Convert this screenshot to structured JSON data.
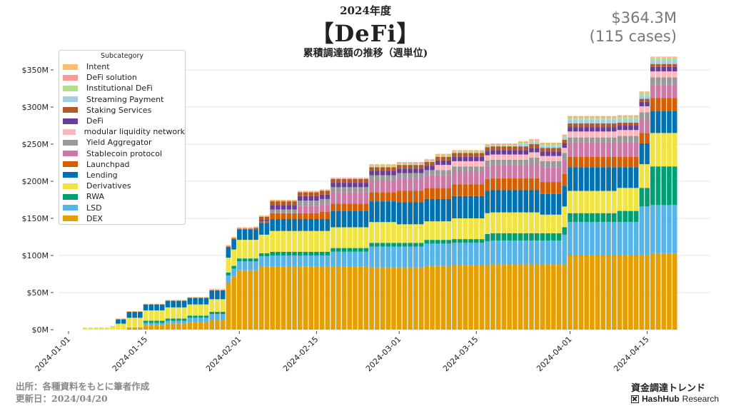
{
  "header": {
    "year_label": "2024年度",
    "title": "【DeFi】",
    "subtitle": "累積調達額の推移（週単位)",
    "total_amount": "$364.3M",
    "total_cases": "(115 cases)"
  },
  "footer": {
    "source": "出所：各種資料をもとに筆者作成",
    "updated": "更新日：2024/04/20",
    "right_title": "資金調達トレンド",
    "brand_bold": "HashHub",
    "brand_light": "Research"
  },
  "chart_data": {
    "type": "bar",
    "stacked": true,
    "title": "累積調達額の推移（週単位)",
    "xlabel": "",
    "ylabel": "",
    "ylim": [
      0,
      365
    ],
    "y_unit": "$M",
    "y_ticks": [
      "$0M",
      "$50M",
      "$100M",
      "$150M",
      "$200M",
      "$250M",
      "$300M",
      "$350M"
    ],
    "y_tick_values": [
      0,
      50,
      100,
      150,
      200,
      250,
      300,
      350
    ],
    "x_start": "2024-01-01",
    "x_end": "2024-04-20",
    "x_ticks": [
      "2024-01-01",
      "2024-01-15",
      "2024-02-01",
      "2024-02-15",
      "2024-03-01",
      "2024-03-15",
      "2024-04-01",
      "2024-04-15"
    ],
    "x_tick_days": [
      0,
      14,
      31,
      45,
      60,
      74,
      91,
      105
    ],
    "grid": "horizontal",
    "legend": {
      "title": "Subcategory",
      "placement": "top-left"
    },
    "first_bar_day": 3,
    "num_days": 111,
    "series_steps": [
      {
        "name": "DEX",
        "color": "#E69F00",
        "steps": [
          [
            3,
            0
          ],
          [
            9,
            0
          ],
          [
            11,
            3
          ],
          [
            14,
            6
          ],
          [
            18,
            8
          ],
          [
            22,
            10
          ],
          [
            26,
            13
          ],
          [
            29,
            63
          ],
          [
            30,
            72
          ],
          [
            31,
            80
          ],
          [
            35,
            85
          ],
          [
            36,
            85
          ],
          [
            48,
            85
          ],
          [
            55,
            84
          ],
          [
            65,
            86
          ],
          [
            70,
            87
          ],
          [
            77,
            88
          ],
          [
            90,
            88
          ],
          [
            91,
            100
          ],
          [
            100,
            100
          ],
          [
            104,
            101
          ],
          [
            106,
            103
          ],
          [
            109,
            103
          ]
        ]
      },
      {
        "name": "LSD",
        "color": "#56B4E9",
        "steps": [
          [
            3,
            0
          ],
          [
            11,
            0
          ],
          [
            14,
            3
          ],
          [
            18,
            4
          ],
          [
            22,
            6
          ],
          [
            26,
            8
          ],
          [
            29,
            10
          ],
          [
            30,
            10
          ],
          [
            31,
            12
          ],
          [
            35,
            14
          ],
          [
            37,
            15
          ],
          [
            48,
            20
          ],
          [
            55,
            28
          ],
          [
            60,
            28
          ],
          [
            65,
            30
          ],
          [
            68,
            30
          ],
          [
            76,
            32
          ],
          [
            90,
            40
          ],
          [
            91,
            45
          ],
          [
            100,
            45
          ],
          [
            104,
            65
          ],
          [
            106,
            65
          ],
          [
            109,
            65
          ]
        ]
      },
      {
        "name": "RWA",
        "color": "#009E73",
        "steps": [
          [
            3,
            0
          ],
          [
            11,
            0
          ],
          [
            14,
            3
          ],
          [
            29,
            4
          ],
          [
            31,
            4
          ],
          [
            37,
            5
          ],
          [
            48,
            5
          ],
          [
            60,
            5
          ],
          [
            70,
            5
          ],
          [
            76,
            10
          ],
          [
            90,
            10
          ],
          [
            91,
            12
          ],
          [
            100,
            15
          ],
          [
            104,
            25
          ],
          [
            106,
            52
          ],
          [
            109,
            52
          ]
        ]
      },
      {
        "name": "Derivatives",
        "color": "#F0E442",
        "steps": [
          [
            3,
            3
          ],
          [
            8,
            4
          ],
          [
            9,
            8
          ],
          [
            11,
            13
          ],
          [
            14,
            14
          ],
          [
            18,
            15
          ],
          [
            26,
            17
          ],
          [
            29,
            20
          ],
          [
            30,
            22
          ],
          [
            31,
            25
          ],
          [
            37,
            28
          ],
          [
            48,
            28
          ],
          [
            55,
            28
          ],
          [
            60,
            25
          ],
          [
            65,
            25
          ],
          [
            70,
            28
          ],
          [
            76,
            28
          ],
          [
            86,
            25
          ],
          [
            90,
            28
          ],
          [
            91,
            30
          ],
          [
            100,
            31
          ],
          [
            104,
            32
          ],
          [
            106,
            45
          ],
          [
            109,
            45
          ]
        ]
      },
      {
        "name": "Lending",
        "color": "#0072B2",
        "steps": [
          [
            3,
            0
          ],
          [
            9,
            6
          ],
          [
            11,
            8
          ],
          [
            18,
            9
          ],
          [
            26,
            12
          ],
          [
            29,
            14
          ],
          [
            31,
            14
          ],
          [
            35,
            16
          ],
          [
            37,
            16
          ],
          [
            48,
            22
          ],
          [
            55,
            28
          ],
          [
            60,
            30
          ],
          [
            65,
            30
          ],
          [
            70,
            30
          ],
          [
            76,
            30
          ],
          [
            86,
            28
          ],
          [
            90,
            28
          ],
          [
            91,
            32
          ],
          [
            100,
            28
          ],
          [
            104,
            28
          ],
          [
            106,
            30
          ],
          [
            109,
            30
          ]
        ]
      },
      {
        "name": "Launchpad",
        "color": "#D55E00",
        "steps": [
          [
            3,
            0
          ],
          [
            29,
            0
          ],
          [
            35,
            2
          ],
          [
            37,
            8
          ],
          [
            46,
            10
          ],
          [
            48,
            10
          ],
          [
            55,
            12
          ],
          [
            60,
            15
          ],
          [
            68,
            15
          ],
          [
            70,
            16
          ],
          [
            76,
            16
          ],
          [
            84,
            16
          ],
          [
            90,
            16
          ],
          [
            91,
            14
          ],
          [
            100,
            14
          ],
          [
            104,
            14
          ],
          [
            106,
            17
          ],
          [
            109,
            17
          ]
        ]
      },
      {
        "name": "Stablecoin protocol",
        "color": "#CC79A7",
        "steps": [
          [
            3,
            0
          ],
          [
            29,
            0
          ],
          [
            40,
            0
          ],
          [
            42,
            10
          ],
          [
            48,
            15
          ],
          [
            55,
            16
          ],
          [
            60,
            17
          ],
          [
            65,
            17
          ],
          [
            70,
            17
          ],
          [
            76,
            18
          ],
          [
            84,
            20
          ],
          [
            90,
            20
          ],
          [
            91,
            19
          ],
          [
            100,
            19
          ],
          [
            104,
            19
          ],
          [
            106,
            18
          ],
          [
            109,
            18
          ]
        ]
      },
      {
        "name": "Yield Aggregator",
        "color": "#999999",
        "steps": [
          [
            3,
            0
          ],
          [
            29,
            0
          ],
          [
            37,
            5
          ],
          [
            42,
            7
          ],
          [
            48,
            7
          ],
          [
            55,
            7
          ],
          [
            60,
            7
          ],
          [
            70,
            7
          ],
          [
            76,
            7
          ],
          [
            84,
            8
          ],
          [
            90,
            8
          ],
          [
            91,
            7
          ],
          [
            100,
            9
          ],
          [
            104,
            9
          ],
          [
            106,
            10
          ],
          [
            109,
            10
          ]
        ]
      },
      {
        "name": "modular liquidity network",
        "color": "#FFB6C1",
        "steps": [
          [
            3,
            0
          ],
          [
            65,
            0
          ],
          [
            67,
            7
          ],
          [
            70,
            7
          ],
          [
            76,
            7
          ],
          [
            86,
            7
          ],
          [
            90,
            7
          ],
          [
            91,
            8
          ],
          [
            100,
            8
          ],
          [
            104,
            8
          ],
          [
            106,
            8
          ],
          [
            109,
            8
          ]
        ]
      },
      {
        "name": "DeFi",
        "color": "#6A3D9A",
        "steps": [
          [
            3,
            0
          ],
          [
            29,
            0
          ],
          [
            35,
            2
          ],
          [
            37,
            6
          ],
          [
            46,
            6
          ],
          [
            48,
            6
          ],
          [
            55,
            6
          ],
          [
            60,
            6
          ],
          [
            70,
            6
          ],
          [
            76,
            6
          ],
          [
            86,
            6
          ],
          [
            90,
            6
          ],
          [
            91,
            6
          ],
          [
            100,
            6
          ],
          [
            104,
            6
          ],
          [
            106,
            6
          ],
          [
            109,
            6
          ]
        ]
      },
      {
        "name": "Staking Services",
        "color": "#B15928",
        "steps": [
          [
            3,
            0
          ],
          [
            28,
            0
          ],
          [
            29,
            1
          ],
          [
            34,
            2
          ],
          [
            35,
            4
          ],
          [
            37,
            5
          ],
          [
            48,
            5
          ],
          [
            55,
            5
          ],
          [
            70,
            5
          ],
          [
            76,
            5
          ],
          [
            86,
            5
          ],
          [
            90,
            5
          ],
          [
            100,
            4
          ],
          [
            104,
            4
          ],
          [
            106,
            4
          ],
          [
            109,
            4
          ]
        ]
      },
      {
        "name": "Streaming Payment",
        "color": "#A6CEE3",
        "steps": [
          [
            3,
            0
          ],
          [
            80,
            0
          ],
          [
            82,
            3
          ],
          [
            90,
            3
          ],
          [
            91,
            5
          ],
          [
            100,
            5
          ],
          [
            104,
            5
          ],
          [
            106,
            5
          ],
          [
            109,
            5
          ]
        ]
      },
      {
        "name": "Institutional DeFi",
        "color": "#B2DF8A",
        "steps": [
          [
            3,
            0
          ],
          [
            54,
            0
          ],
          [
            55,
            2
          ],
          [
            60,
            2
          ],
          [
            70,
            2
          ],
          [
            76,
            2
          ],
          [
            86,
            2
          ],
          [
            90,
            2
          ],
          [
            91,
            3
          ],
          [
            100,
            3
          ],
          [
            104,
            3
          ],
          [
            106,
            3
          ],
          [
            109,
            3
          ]
        ]
      },
      {
        "name": "DeFi solution",
        "color": "#FB9A99",
        "steps": [
          [
            3,
            0
          ],
          [
            24,
            0
          ],
          [
            26,
            1
          ],
          [
            29,
            1
          ],
          [
            48,
            1
          ],
          [
            60,
            1
          ],
          [
            70,
            1
          ],
          [
            90,
            1
          ],
          [
            100,
            1
          ],
          [
            104,
            1
          ],
          [
            106,
            1
          ],
          [
            109,
            1
          ]
        ]
      },
      {
        "name": "Intent",
        "color": "#FDBF6F",
        "steps": [
          [
            3,
            0
          ],
          [
            8,
            1
          ],
          [
            11,
            1
          ],
          [
            29,
            1
          ],
          [
            48,
            1
          ],
          [
            60,
            1
          ],
          [
            70,
            1
          ],
          [
            90,
            1
          ],
          [
            100,
            1
          ],
          [
            104,
            1
          ],
          [
            106,
            1
          ],
          [
            109,
            1
          ]
        ]
      }
    ]
  }
}
